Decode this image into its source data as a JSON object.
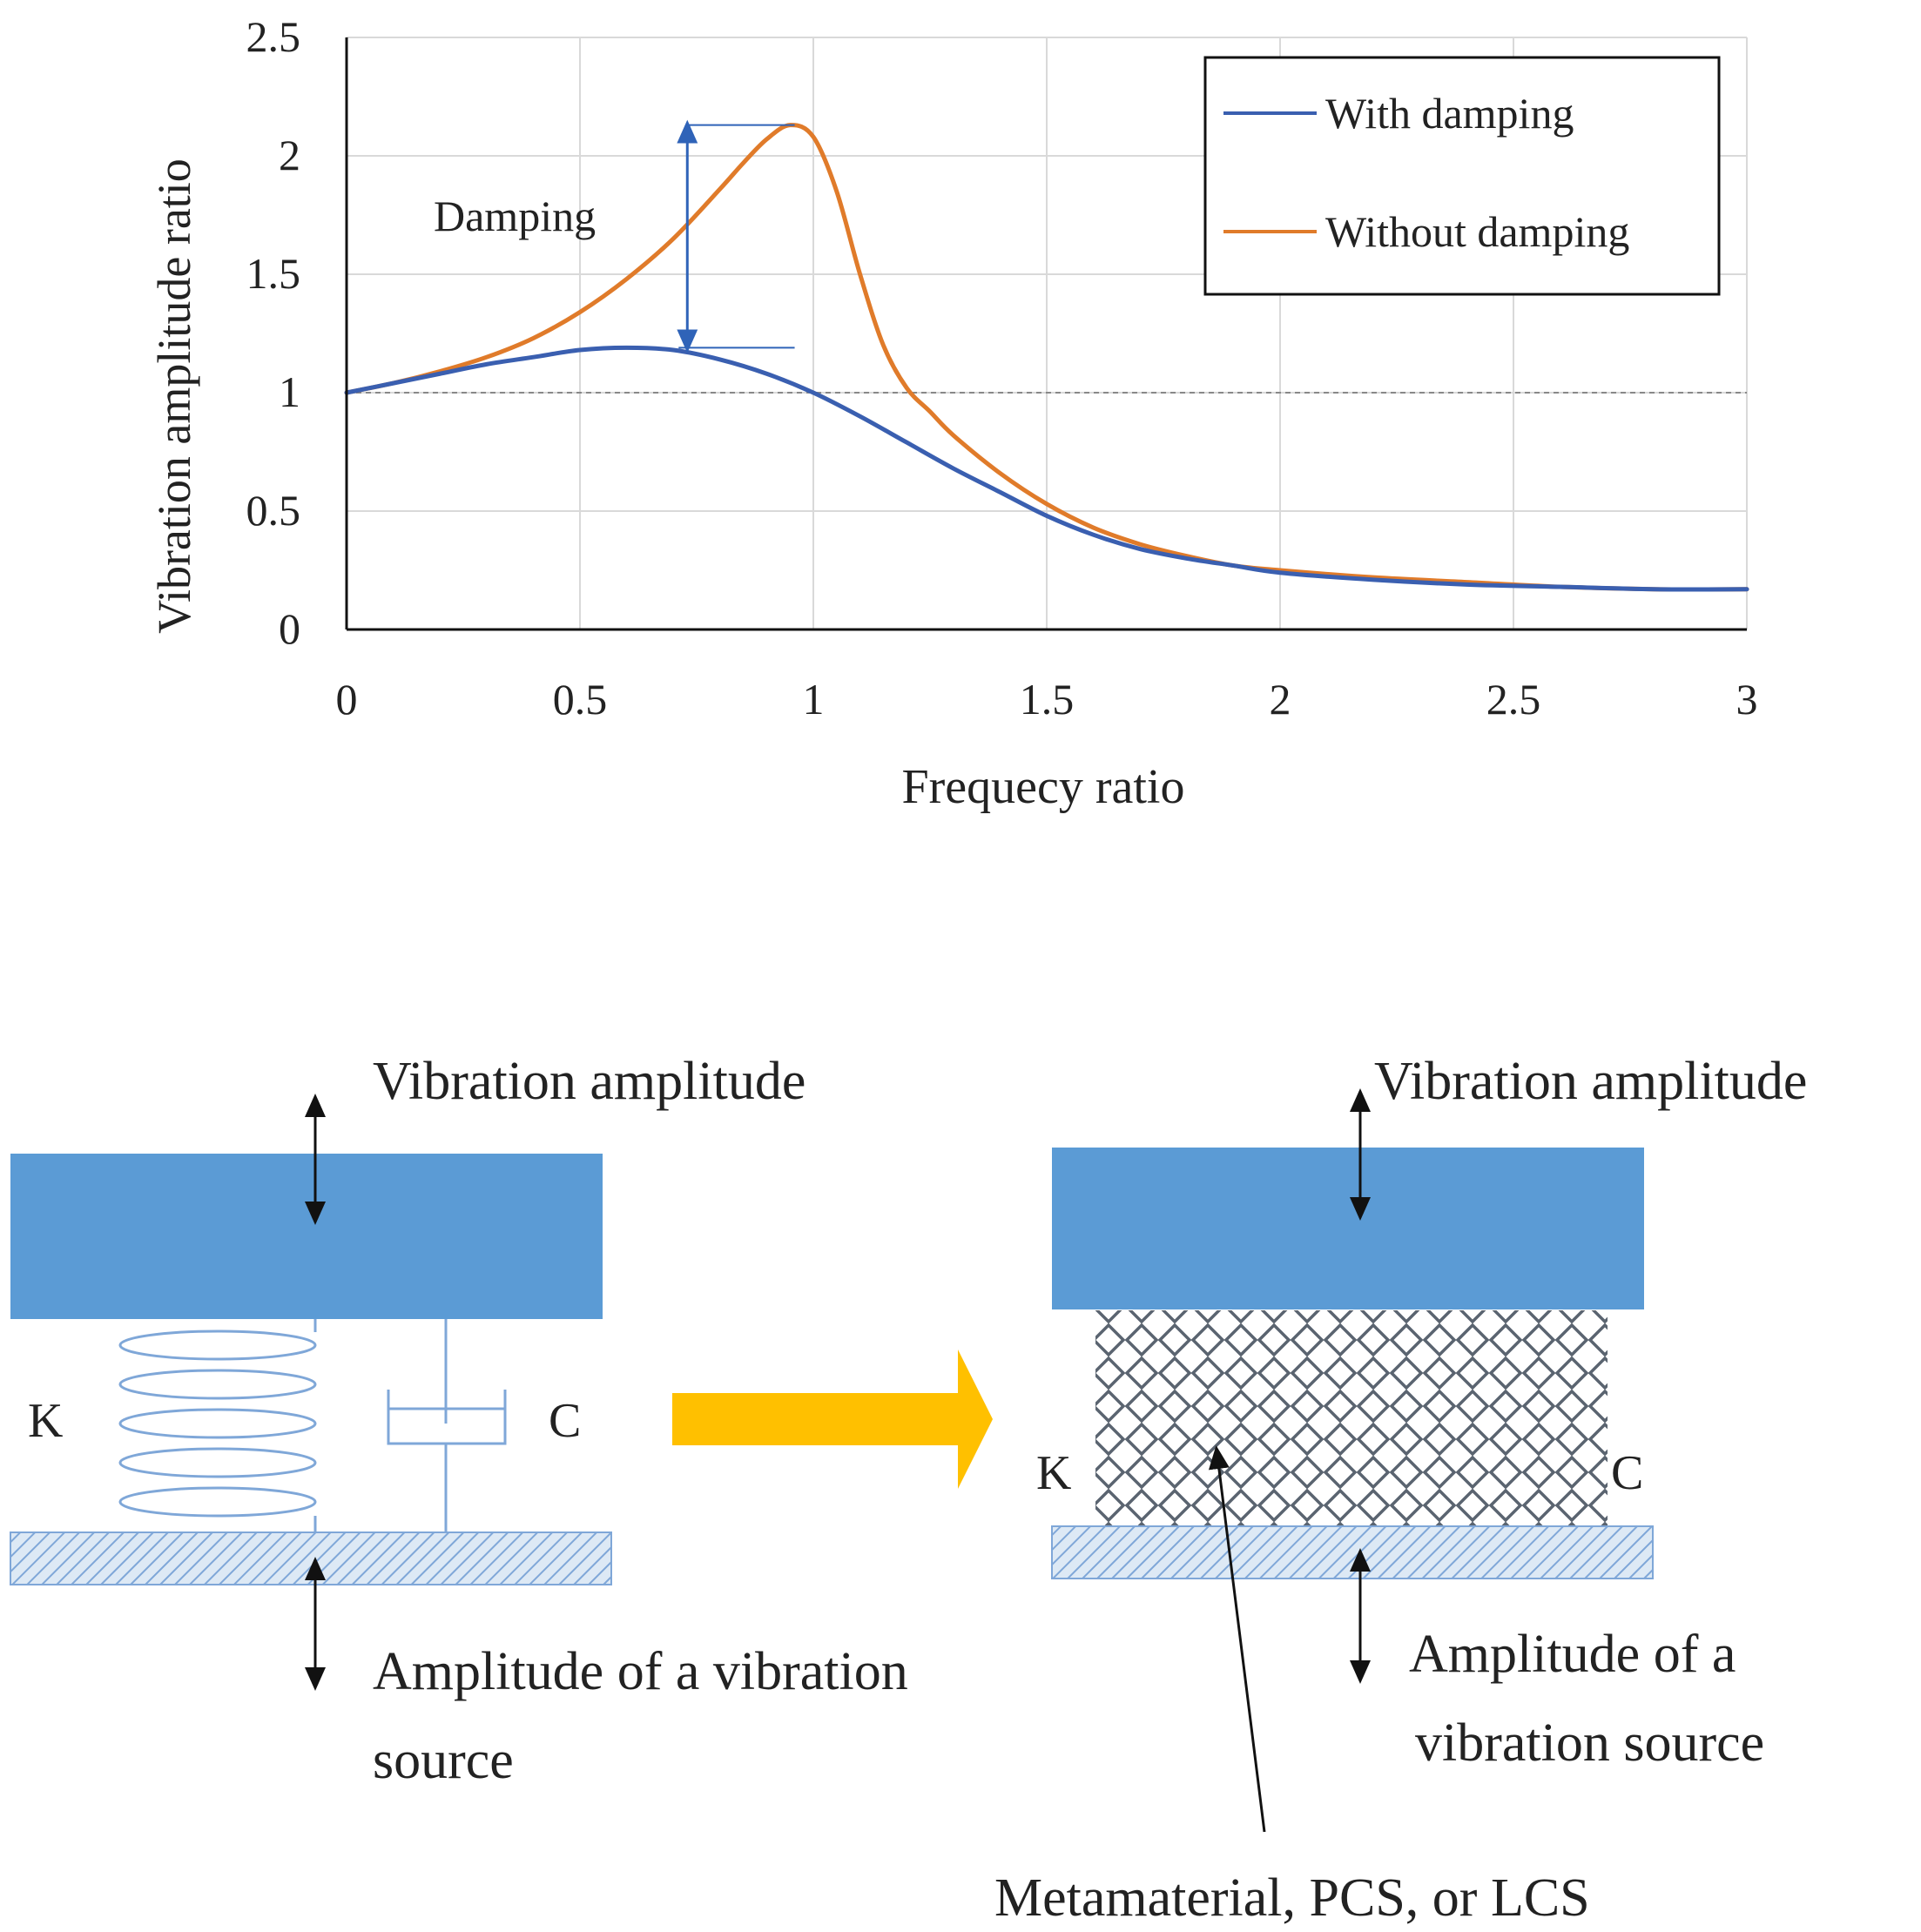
{
  "chart_data": {
    "type": "line",
    "xlabel": "Frequecy ratio",
    "ylabel": "Vibration amplitude ratio",
    "xlim": [
      0,
      3
    ],
    "ylim": [
      0,
      2.5
    ],
    "x_ticks": [
      "0",
      "0.5",
      "1",
      "1.5",
      "2",
      "2.5",
      "3"
    ],
    "y_ticks": [
      "0",
      "0.5",
      "1",
      "1.5",
      "2",
      "2.5"
    ],
    "reference_line": {
      "y": 1,
      "style": "dashed"
    },
    "series": [
      {
        "name": "With damping",
        "color": "#3a5fb0",
        "x": [
          0,
          0.1,
          0.2,
          0.3,
          0.4,
          0.5,
          0.6,
          0.7,
          0.8,
          0.9,
          1.0,
          1.1,
          1.2,
          1.3,
          1.4,
          1.5,
          1.6,
          1.7,
          1.8,
          1.9,
          2.0,
          2.2,
          2.4,
          2.6,
          2.8,
          3.0
        ],
        "y": [
          1.0,
          1.04,
          1.08,
          1.12,
          1.15,
          1.18,
          1.19,
          1.18,
          1.14,
          1.08,
          1.0,
          0.9,
          0.79,
          0.68,
          0.58,
          0.48,
          0.4,
          0.34,
          0.3,
          0.27,
          0.24,
          0.21,
          0.19,
          0.18,
          0.17,
          0.17
        ]
      },
      {
        "name": "Without damping",
        "color": "#e07b2a",
        "x": [
          0,
          0.1,
          0.2,
          0.3,
          0.4,
          0.5,
          0.6,
          0.7,
          0.8,
          0.85,
          0.9,
          0.95,
          1.0,
          1.05,
          1.1,
          1.15,
          1.2,
          1.25,
          1.3,
          1.4,
          1.5,
          1.6,
          1.7,
          1.8,
          1.9,
          2.0,
          2.2,
          2.4,
          2.6,
          2.8,
          3.0
        ],
        "y": [
          1.0,
          1.04,
          1.09,
          1.15,
          1.23,
          1.34,
          1.48,
          1.65,
          1.86,
          1.97,
          2.07,
          2.13,
          2.08,
          1.85,
          1.5,
          1.2,
          1.02,
          0.92,
          0.82,
          0.66,
          0.53,
          0.43,
          0.36,
          0.31,
          0.27,
          0.25,
          0.22,
          0.2,
          0.18,
          0.17,
          0.17
        ]
      }
    ],
    "annotation": {
      "label": "Damping",
      "x": 0.73,
      "from_y": 1.19,
      "to_y": 2.13
    }
  },
  "diagram": {
    "left": {
      "top_label": "Vibration  amplitude",
      "k_label": "K",
      "c_label": "C",
      "bottom_label_line1": "Amplitude  of a vibration",
      "bottom_label_line2": "source"
    },
    "right": {
      "top_label": "Vibration  amplitude",
      "k_label": "K",
      "c_label": "C",
      "bottom_label_line1": "Amplitude  of a",
      "bottom_label_line2": "vibration  source",
      "material_label": "Metamaterial,  PCS, or LCS"
    },
    "colors": {
      "mass": "#5b9bd5",
      "spring": "#7fa7d8",
      "arrow": "#ffc000",
      "lattice": "#5a6470"
    }
  }
}
